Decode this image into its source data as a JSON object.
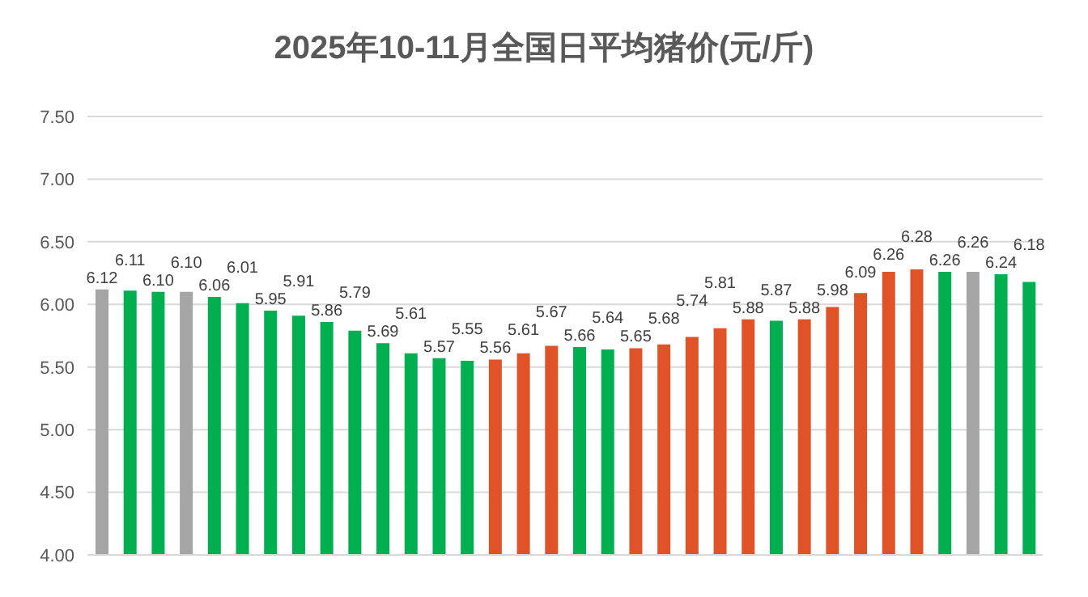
{
  "chart_data": {
    "type": "bar",
    "title": "2025年10-11月全国日平均猪价(元/斤)",
    "categories": [
      null,
      null,
      null,
      null,
      null,
      null,
      null,
      null,
      null,
      null,
      null,
      null,
      null,
      null,
      null,
      null,
      null,
      null,
      null,
      null,
      null,
      null,
      null,
      null,
      null,
      null,
      null,
      null,
      null,
      null,
      null,
      null,
      null,
      null
    ],
    "values": [
      6.12,
      6.11,
      6.1,
      6.1,
      6.06,
      6.01,
      5.95,
      5.91,
      5.86,
      5.79,
      5.69,
      5.61,
      5.57,
      5.55,
      5.56,
      5.61,
      5.67,
      5.66,
      5.64,
      5.65,
      5.68,
      5.74,
      5.81,
      5.88,
      5.87,
      5.88,
      5.98,
      6.09,
      6.26,
      6.28,
      6.26,
      6.26,
      6.24,
      6.18
    ],
    "colors": [
      "#a5a5a5",
      "#00b050",
      "#00b050",
      "#a5a5a5",
      "#00b050",
      "#00b050",
      "#00b050",
      "#00b050",
      "#00b050",
      "#00b050",
      "#00b050",
      "#00b050",
      "#00b050",
      "#00b050",
      "#e05328",
      "#e05328",
      "#e05328",
      "#00b050",
      "#00b050",
      "#e05328",
      "#e05328",
      "#e05328",
      "#e05328",
      "#e05328",
      "#00b050",
      "#e05328",
      "#e05328",
      "#e05328",
      "#e05328",
      "#e05328",
      "#00b050",
      "#a5a5a5",
      "#00b050",
      "#00b050"
    ],
    "ylim": [
      4,
      7.5
    ],
    "yticks": [
      {
        "value": 4,
        "label": "4.00"
      },
      {
        "value": 4.5,
        "label": "4.50"
      },
      {
        "value": 5,
        "label": "5.00"
      },
      {
        "value": 5.5,
        "label": "5.50"
      },
      {
        "value": 6,
        "label": "6.00"
      },
      {
        "value": 6.5,
        "label": "6.50"
      },
      {
        "value": 7,
        "label": "7.00"
      },
      {
        "value": 7.5,
        "label": "7.50"
      }
    ],
    "value_labels": [
      "6.12",
      "6.11",
      "6.10",
      "6.10",
      "6.06",
      "6.01",
      "5.95",
      "5.91",
      "5.86",
      "5.79",
      "5.69",
      "5.61",
      "5.57",
      "5.55",
      "5.56",
      "5.61",
      "5.67",
      "5.66",
      "5.64",
      "5.65",
      "5.68",
      "5.74",
      "5.81",
      "5.88",
      "5.87",
      "5.88",
      "5.98",
      "6.09",
      "6.26",
      "6.28",
      "6.26",
      "6.26",
      "6.24",
      "6.18"
    ],
    "grid": "y",
    "tick_labels": "y"
  }
}
